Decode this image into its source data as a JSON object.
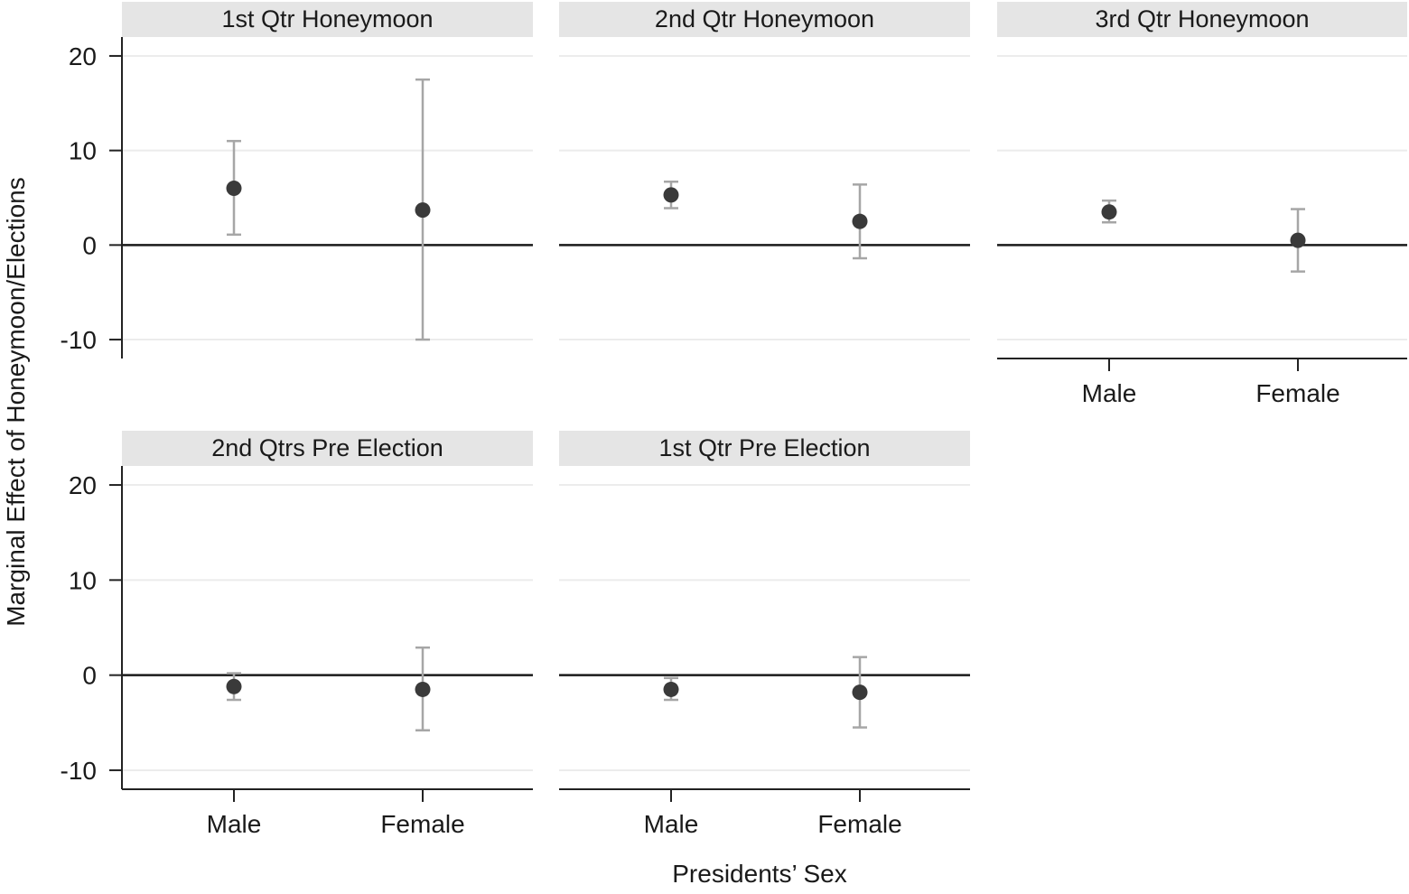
{
  "chart_data": {
    "type": "scatter",
    "subtype": "faceted point estimates with confidence intervals",
    "xlabel": "Presidents’ Sex",
    "ylabel": "Marginal Effect of Honeymoon/Elections",
    "categories": [
      "Male",
      "Female"
    ],
    "ylim": [
      -12,
      22
    ],
    "yticks": [
      "20",
      "10",
      "0",
      "-10"
    ],
    "ytick_values": [
      20,
      10,
      0,
      -10
    ],
    "reference_line": 0,
    "grid": "horizontal",
    "colors": {
      "point": "#3a3a3a",
      "errorbar": "#a6a6a6",
      "zero_line": "#1a1a1a",
      "strip_bg": "#e5e5e5",
      "grid": "#ececec"
    },
    "panels": [
      {
        "title": "1st Qtr Honeymoon",
        "points": [
          {
            "category": "Male",
            "estimate": 6.0,
            "lower": 1.1,
            "upper": 11.0
          },
          {
            "category": "Female",
            "estimate": 3.7,
            "lower": -10.0,
            "upper": 17.5
          }
        ]
      },
      {
        "title": "2nd Qtr Honeymoon",
        "points": [
          {
            "category": "Male",
            "estimate": 5.3,
            "lower": 3.9,
            "upper": 6.7
          },
          {
            "category": "Female",
            "estimate": 2.5,
            "lower": -1.4,
            "upper": 6.4
          }
        ]
      },
      {
        "title": "3rd Qtr Honeymoon",
        "points": [
          {
            "category": "Male",
            "estimate": 3.5,
            "lower": 2.4,
            "upper": 4.7
          },
          {
            "category": "Female",
            "estimate": 0.5,
            "lower": -2.8,
            "upper": 3.8
          }
        ]
      },
      {
        "title": "2nd Qtrs Pre Election",
        "points": [
          {
            "category": "Male",
            "estimate": -1.2,
            "lower": -2.6,
            "upper": 0.2
          },
          {
            "category": "Female",
            "estimate": -1.5,
            "lower": -5.8,
            "upper": 2.9
          }
        ]
      },
      {
        "title": "1st Qtr Pre Election",
        "points": [
          {
            "category": "Male",
            "estimate": -1.5,
            "lower": -2.6,
            "upper": -0.3
          },
          {
            "category": "Female",
            "estimate": -1.8,
            "lower": -5.5,
            "upper": 1.9
          }
        ]
      }
    ]
  }
}
